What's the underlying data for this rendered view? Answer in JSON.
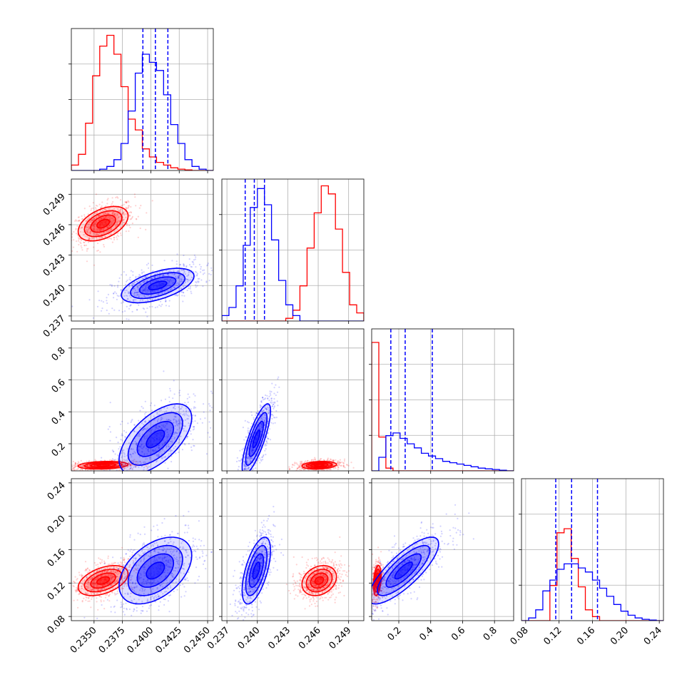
{
  "chart_data": {
    "type": "corner",
    "params": 4,
    "colors": {
      "series_a": "#ff0000",
      "series_b": "#0000ff"
    },
    "series": [
      {
        "color": "#ff0000"
      },
      {
        "color": "#0000ff"
      }
    ],
    "grid": true,
    "axes": [
      {
        "range": [
          0.233,
          0.2455
        ],
        "ticks": [
          0.235,
          0.2375,
          0.24,
          0.2425,
          0.245
        ],
        "tick_labels": [
          "0.2350",
          "0.2375",
          "0.2400",
          "0.2425",
          "0.2450"
        ],
        "hist_a": [
          0.04,
          0.12,
          0.35,
          0.7,
          0.92,
          1.0,
          0.86,
          0.62,
          0.38,
          0.3,
          0.16,
          0.1,
          0.06,
          0.04,
          0.02,
          0.01,
          0.005,
          0.0,
          0.0,
          0.0
        ],
        "hist_b": [
          0.0,
          0.0,
          0.0,
          0.0,
          0.01,
          0.03,
          0.08,
          0.2,
          0.44,
          0.72,
          0.86,
          0.8,
          0.74,
          0.56,
          0.34,
          0.2,
          0.08,
          0.03,
          0.01,
          0.0
        ],
        "quantiles_b": [
          0.2393,
          0.2404,
          0.2415
        ]
      },
      {
        "range": [
          0.2365,
          0.2505
        ],
        "ticks": [
          0.237,
          0.24,
          0.243,
          0.246,
          0.249
        ],
        "tick_labels": [
          "0.237",
          "0.240",
          "0.243",
          "0.246",
          "0.249"
        ],
        "hist_a": [
          0.0,
          0.0,
          0.0,
          0.0,
          0.0,
          0.0,
          0.0,
          0.0,
          0.0,
          0.02,
          0.08,
          0.26,
          0.54,
          0.8,
          1.0,
          0.94,
          0.68,
          0.36,
          0.12,
          0.06
        ],
        "hist_b": [
          0.04,
          0.1,
          0.26,
          0.56,
          0.84,
          0.98,
          0.86,
          0.6,
          0.3,
          0.12,
          0.04,
          0.0,
          0.0,
          0.0,
          0.0,
          0.0,
          0.0,
          0.0,
          0.0,
          0.0
        ],
        "quantiles_b": [
          0.2388,
          0.2397,
          0.2407
        ]
      },
      {
        "range": [
          0.03,
          0.92
        ],
        "ticks": [
          0.2,
          0.4,
          0.6,
          0.8
        ],
        "tick_labels": [
          "0.2",
          "0.4",
          "0.6",
          "0.8"
        ],
        "hist_a": [
          0.95,
          0.25,
          0.02,
          0.0,
          0.0,
          0.0,
          0.0,
          0.0,
          0.0,
          0.0,
          0.0,
          0.0,
          0.0,
          0.0,
          0.0,
          0.0,
          0.0,
          0.0,
          0.0,
          0.0
        ],
        "hist_b": [
          0.0,
          0.1,
          0.26,
          0.28,
          0.24,
          0.2,
          0.17,
          0.13,
          0.11,
          0.09,
          0.07,
          0.06,
          0.05,
          0.04,
          0.03,
          0.02,
          0.015,
          0.01,
          0.005,
          0.0
        ],
        "quantiles_b": [
          0.15,
          0.24,
          0.41
        ]
      },
      {
        "range": [
          0.075,
          0.245
        ],
        "ticks": [
          0.08,
          0.12,
          0.16,
          0.2,
          0.24
        ],
        "tick_labels": [
          "0.08",
          "0.12",
          "0.16",
          "0.20",
          "0.24"
        ],
        "hist_a": [
          0.0,
          0.0,
          0.0,
          0.0,
          0.26,
          0.65,
          0.68,
          0.46,
          0.25,
          0.08,
          0.03,
          0.0,
          0.0,
          0.0,
          0.0,
          0.0,
          0.0,
          0.0,
          0.0,
          0.0
        ],
        "hist_b": [
          0.0,
          0.02,
          0.08,
          0.22,
          0.3,
          0.38,
          0.42,
          0.42,
          0.39,
          0.36,
          0.3,
          0.24,
          0.18,
          0.12,
          0.07,
          0.04,
          0.02,
          0.01,
          0.005,
          0.0
        ],
        "quantiles_b": [
          0.116,
          0.135,
          0.166
        ]
      }
    ],
    "joint": [
      {
        "row": 1,
        "col": 0,
        "a": {
          "mean": [
            0.2358,
            0.2461
          ],
          "sd": [
            0.0011,
            0.00085
          ],
          "corr": 0.45
        },
        "b": {
          "mean": [
            0.2406,
            0.24
          ],
          "sd": [
            0.0016,
            0.00085
          ],
          "corr": 0.55
        }
      },
      {
        "row": 2,
        "col": 0,
        "a": {
          "mean": [
            0.2358,
            0.065
          ],
          "sd": [
            0.0011,
            0.012
          ],
          "corr": 0.2
        },
        "b": {
          "mean": [
            0.2404,
            0.23
          ],
          "sd": [
            0.0016,
            0.11
          ],
          "corr": 0.6
        }
      },
      {
        "row": 2,
        "col": 1,
        "a": {
          "mean": [
            0.2461,
            0.065
          ],
          "sd": [
            0.00085,
            0.012
          ],
          "corr": 0.2
        },
        "b": {
          "mean": [
            0.2399,
            0.23
          ],
          "sd": [
            0.0007,
            0.11
          ],
          "corr": 0.8
        }
      },
      {
        "row": 3,
        "col": 0,
        "a": {
          "mean": [
            0.2358,
            0.123
          ],
          "sd": [
            0.0011,
            0.009
          ],
          "corr": 0.45
        },
        "b": {
          "mean": [
            0.2404,
            0.135
          ],
          "sd": [
            0.0016,
            0.02
          ],
          "corr": 0.45
        }
      },
      {
        "row": 3,
        "col": 1,
        "a": {
          "mean": [
            0.2461,
            0.123
          ],
          "sd": [
            0.00085,
            0.009
          ],
          "corr": 0.25
        },
        "b": {
          "mean": [
            0.2399,
            0.135
          ],
          "sd": [
            0.0007,
            0.02
          ],
          "corr": 0.6
        }
      },
      {
        "row": 3,
        "col": 2,
        "a": {
          "mean": [
            0.065,
            0.123
          ],
          "sd": [
            0.012,
            0.009
          ],
          "corr": 0.3
        },
        "b": {
          "mean": [
            0.23,
            0.135
          ],
          "sd": [
            0.11,
            0.02
          ],
          "corr": 0.8
        }
      }
    ],
    "contour_levels_sigma": [
      0.5,
      1.0,
      1.5,
      2.0
    ]
  }
}
